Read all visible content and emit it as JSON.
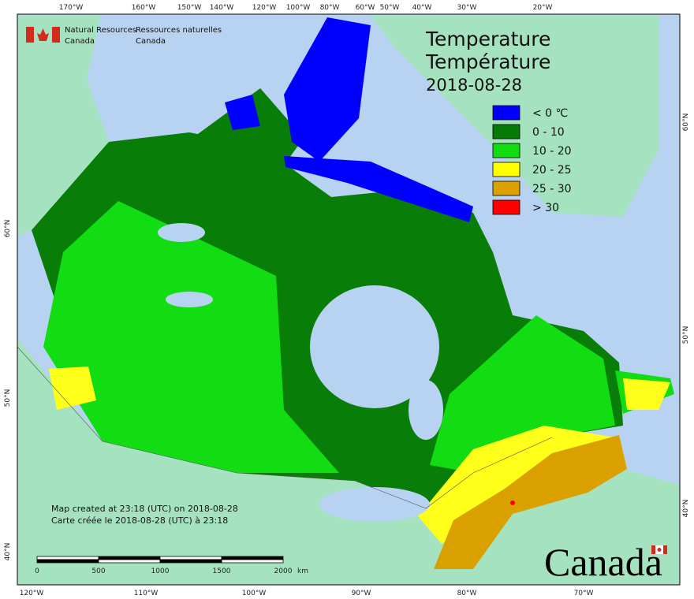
{
  "header": {
    "org_en": [
      "Natural Resources",
      "Canada"
    ],
    "org_fr": [
      "Ressources naturelles",
      "Canada"
    ]
  },
  "title": [
    "Temperature",
    "Température",
    "2018-08-28"
  ],
  "legend": [
    {
      "label": "< 0 ℃",
      "color": "#0000ff"
    },
    {
      "label": "0 - 10",
      "color": "#057a05"
    },
    {
      "label": "10 - 20",
      "color": "#10dc10"
    },
    {
      "label": "20 - 25",
      "color": "#ffff00"
    },
    {
      "label": "25 - 30",
      "color": "#dca000"
    },
    {
      "label": "> 30",
      "color": "#ff0000"
    }
  ],
  "top_labels": [
    "170°W",
    "160°W",
    "150°W",
    "140°W",
    "120°W",
    "100°W",
    "80°W",
    "60°W",
    "50°W",
    "40°W",
    "30°W",
    "20°W"
  ],
  "bottom_labels": [
    "120°W",
    "110°W",
    "100°W",
    "90°W",
    "80°W",
    "70°W"
  ],
  "left_labels": [
    "60°N",
    "50°N",
    "40°N"
  ],
  "right_labels": [
    "60°N",
    "50°N",
    "40°N"
  ],
  "footer": [
    "Map created at 23:18 (UTC) on 2018-08-28",
    "Carte créée le 2018-08-28 (UTC) à 23:18"
  ],
  "scale": {
    "labels": [
      "0",
      "500",
      "1000",
      "1500",
      "2000"
    ],
    "unit": "km"
  },
  "wordmark": "Canada"
}
